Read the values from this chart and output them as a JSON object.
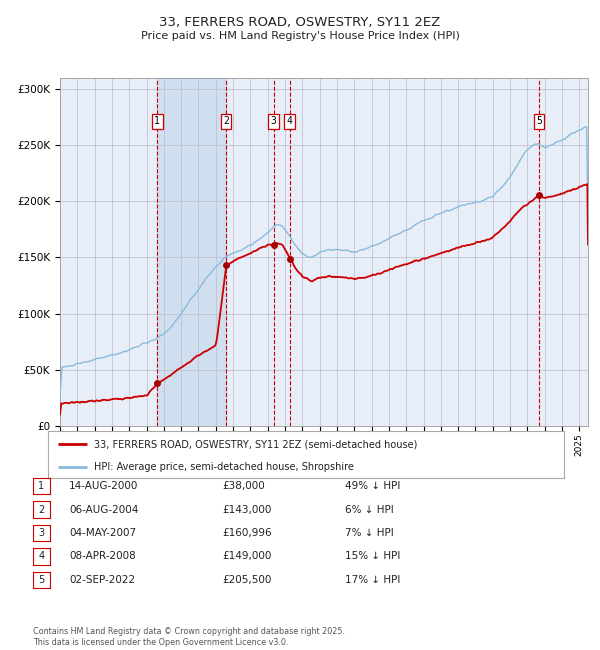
{
  "title": "33, FERRERS ROAD, OSWESTRY, SY11 2EZ",
  "subtitle": "Price paid vs. HM Land Registry's House Price Index (HPI)",
  "background_color": "#ffffff",
  "plot_bg_color": "#e8eef8",
  "grid_color": "#bbbbcc",
  "ylim": [
    0,
    310000
  ],
  "yticks": [
    0,
    50000,
    100000,
    150000,
    200000,
    250000,
    300000
  ],
  "ytick_labels": [
    "£0",
    "£50K",
    "£100K",
    "£150K",
    "£200K",
    "£250K",
    "£300K"
  ],
  "sale_dates_num": [
    2000.617,
    2004.592,
    2007.336,
    2008.274,
    2022.669
  ],
  "sale_prices": [
    38000,
    143000,
    160996,
    149000,
    205500
  ],
  "sale_labels": [
    "1",
    "2",
    "3",
    "4",
    "5"
  ],
  "vline_color": "#cc0000",
  "sale_dot_color": "#aa0000",
  "hpi_line_color": "#88bbdd",
  "price_line_color": "#cc0000",
  "shade_start": 2000.617,
  "shade_end": 2004.592,
  "shade_color": "#d0dff0",
  "legend_entries": [
    "33, FERRERS ROAD, OSWESTRY, SY11 2EZ (semi-detached house)",
    "HPI: Average price, semi-detached house, Shropshire"
  ],
  "table_rows": [
    [
      "1",
      "14-AUG-2000",
      "£38,000",
      "49% ↓ HPI"
    ],
    [
      "2",
      "06-AUG-2004",
      "£143,000",
      "6% ↓ HPI"
    ],
    [
      "3",
      "04-MAY-2007",
      "£160,996",
      "7% ↓ HPI"
    ],
    [
      "4",
      "08-APR-2008",
      "£149,000",
      "15% ↓ HPI"
    ],
    [
      "5",
      "02-SEP-2022",
      "£205,500",
      "17% ↓ HPI"
    ]
  ],
  "footer_text": "Contains HM Land Registry data © Crown copyright and database right 2025.\nThis data is licensed under the Open Government Licence v3.0.",
  "xmin": 1995.0,
  "xmax": 2025.5
}
